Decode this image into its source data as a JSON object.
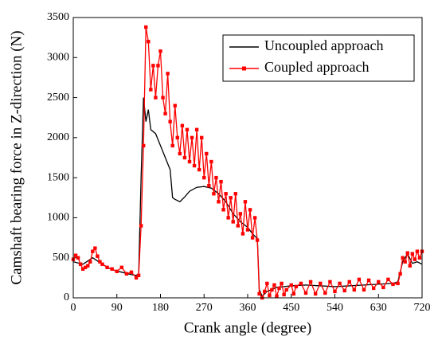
{
  "chart_data": {
    "type": "line",
    "xlabel": "Crank angle (degree)",
    "ylabel": "Camshaft bearing force in Z-direction (N)",
    "xlim": [
      0,
      720
    ],
    "xticks": [
      0,
      90,
      180,
      270,
      360,
      450,
      540,
      630,
      720
    ],
    "ylim": [
      0,
      3500
    ],
    "yticks": [
      0,
      500,
      1000,
      1500,
      2000,
      2500,
      3000,
      3500
    ],
    "legend": "top-right",
    "series": [
      {
        "name": "Uncoupled approach",
        "color": "#000000",
        "marker": false,
        "x": [
          0,
          20,
          40,
          60,
          80,
          100,
          120,
          130,
          135,
          140,
          145,
          150,
          155,
          160,
          170,
          180,
          190,
          200,
          205,
          210,
          220,
          230,
          240,
          255,
          270,
          285,
          300,
          315,
          330,
          345,
          360,
          370,
          380,
          384,
          390,
          400,
          420,
          450,
          480,
          510,
          540,
          570,
          600,
          630,
          660,
          670,
          680,
          690,
          700,
          710,
          720
        ],
        "values": [
          450,
          420,
          500,
          420,
          350,
          320,
          290,
          280,
          300,
          1500,
          2500,
          2200,
          2350,
          2100,
          2050,
          1900,
          1750,
          1600,
          1250,
          1230,
          1200,
          1260,
          1330,
          1380,
          1390,
          1370,
          1300,
          1200,
          1050,
          950,
          880,
          800,
          740,
          100,
          20,
          80,
          130,
          150,
          160,
          150,
          140,
          150,
          160,
          170,
          180,
          200,
          450,
          550,
          430,
          450,
          420
        ]
      },
      {
        "name": "Coupled approach",
        "color": "#ff0000",
        "marker": true,
        "x": [
          0,
          5,
          10,
          15,
          20,
          25,
          30,
          35,
          40,
          45,
          50,
          55,
          60,
          70,
          80,
          90,
          100,
          110,
          120,
          130,
          135,
          140,
          145,
          150,
          155,
          160,
          165,
          170,
          175,
          180,
          185,
          190,
          195,
          200,
          205,
          210,
          215,
          220,
          225,
          230,
          235,
          240,
          245,
          250,
          255,
          260,
          265,
          270,
          275,
          280,
          285,
          290,
          295,
          300,
          305,
          310,
          315,
          320,
          325,
          330,
          335,
          340,
          345,
          350,
          355,
          360,
          365,
          370,
          375,
          380,
          384,
          390,
          395,
          400,
          405,
          410,
          415,
          420,
          425,
          430,
          435,
          440,
          450,
          455,
          460,
          470,
          480,
          490,
          500,
          510,
          520,
          530,
          540,
          550,
          560,
          570,
          580,
          590,
          600,
          610,
          620,
          630,
          640,
          650,
          660,
          670,
          675,
          680,
          685,
          690,
          695,
          700,
          705,
          710,
          715,
          720
        ],
        "values": [
          480,
          530,
          500,
          420,
          360,
          380,
          400,
          450,
          580,
          620,
          520,
          450,
          420,
          380,
          360,
          330,
          380,
          300,
          320,
          250,
          280,
          900,
          1900,
          3380,
          3200,
          2600,
          2900,
          2500,
          2900,
          3080,
          2500,
          2300,
          2800,
          2200,
          1900,
          2400,
          2000,
          1800,
          2150,
          1750,
          2100,
          1700,
          2000,
          1650,
          2100,
          1600,
          2000,
          1500,
          1800,
          1400,
          1700,
          1300,
          1500,
          1200,
          1450,
          1100,
          1300,
          1000,
          1250,
          950,
          1300,
          900,
          1050,
          800,
          1200,
          850,
          1100,
          750,
          1000,
          720,
          50,
          0,
          80,
          180,
          30,
          100,
          160,
          20,
          120,
          180,
          40,
          100,
          160,
          50,
          140,
          180,
          60,
          200,
          50,
          180,
          60,
          200,
          80,
          180,
          90,
          200,
          100,
          230,
          100,
          220,
          120,
          200,
          130,
          230,
          170,
          180,
          300,
          500,
          450,
          560,
          400,
          550,
          480,
          580,
          500,
          580
        ]
      }
    ]
  }
}
